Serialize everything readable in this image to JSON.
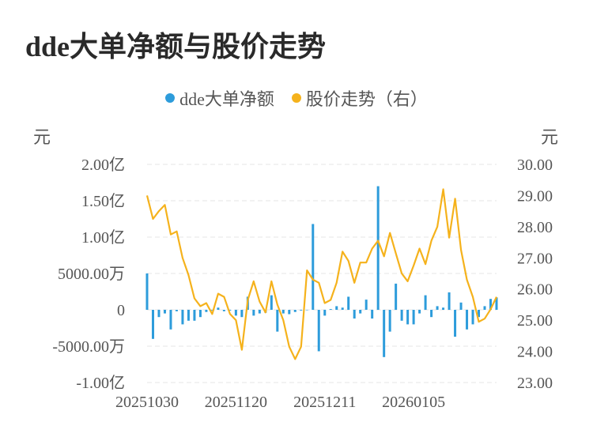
{
  "title": "dde大单净额与股价走势",
  "legend": [
    {
      "label": "dde大单净额",
      "color": "#2d9cdb"
    },
    {
      "label": "股价走势（右）",
      "color": "#f5b21c"
    }
  ],
  "left_unit": "元",
  "right_unit": "元",
  "chart_data": {
    "type": "bar+line",
    "left_axis": {
      "ticks": [
        200000000.0,
        150000000.0,
        100000000.0,
        50000000.0,
        0,
        -50000000.0,
        -100000000.0
      ],
      "tick_labels": [
        "2.00亿",
        "1.50亿",
        "1.00亿",
        "5000.00万",
        "0",
        "-5000.00万",
        "-1.00亿"
      ],
      "ylim": [
        -100000000.0,
        200000000.0
      ]
    },
    "right_axis": {
      "ticks": [
        30.0,
        29.0,
        28.0,
        27.0,
        26.0,
        25.0,
        24.0,
        23.0
      ],
      "tick_labels": [
        "30.00",
        "29.00",
        "28.00",
        "27.00",
        "26.00",
        "25.00",
        "24.00",
        "23.00"
      ],
      "ylim": [
        23.0,
        30.0
      ]
    },
    "x_tick_labels": [
      {
        "index": 0,
        "label": "20251030"
      },
      {
        "index": 15,
        "label": "20251120"
      },
      {
        "index": 30,
        "label": "20251211"
      },
      {
        "index": 45,
        "label": "20260105"
      }
    ],
    "series": [
      {
        "name": "dde大单净额",
        "type": "bar",
        "color": "#2d9cdb",
        "values": [
          50000000,
          -40000000,
          -10000000,
          -5000000,
          -27000000,
          -2000000,
          -20000000,
          -15000000,
          -15000000,
          -10000000,
          -3000000,
          -1000000,
          3000000,
          -2000000,
          -1000000,
          -8000000,
          -10000000,
          18000000,
          -8000000,
          -5000000,
          -4000000,
          20000000,
          -30000000,
          -5000000,
          -6000000,
          -3000000,
          -1000000,
          0,
          118000000,
          -57000000,
          -8000000,
          1000000,
          5000000,
          3000000,
          18000000,
          -12000000,
          -5000000,
          14000000,
          -12000000,
          170000000,
          -65000000,
          -30000000,
          36000000,
          -15000000,
          -20000000,
          -20000000,
          -5000000,
          20000000,
          -10000000,
          5000000,
          3000000,
          24000000,
          -37000000,
          10000000,
          -27000000,
          -20000000,
          -10000000,
          5000000,
          15000000,
          17000000
        ]
      },
      {
        "name": "股价走势（右）",
        "type": "line",
        "color": "#f5b21c",
        "values": [
          29.0,
          28.25,
          28.5,
          28.7,
          27.75,
          27.85,
          27.0,
          26.45,
          25.7,
          25.45,
          25.55,
          25.2,
          25.85,
          25.75,
          25.2,
          25.0,
          24.05,
          25.65,
          26.25,
          25.6,
          25.25,
          26.25,
          25.5,
          25.0,
          24.15,
          23.75,
          24.15,
          26.6,
          26.3,
          26.2,
          25.55,
          25.65,
          26.2,
          27.2,
          26.9,
          26.2,
          26.85,
          26.85,
          27.3,
          27.55,
          27.05,
          27.8,
          27.15,
          26.5,
          26.25,
          26.75,
          27.3,
          26.8,
          27.55,
          28.0,
          29.2,
          27.65,
          28.9,
          27.25,
          26.3,
          25.75,
          24.95,
          25.05,
          25.35,
          25.75
        ]
      }
    ]
  }
}
